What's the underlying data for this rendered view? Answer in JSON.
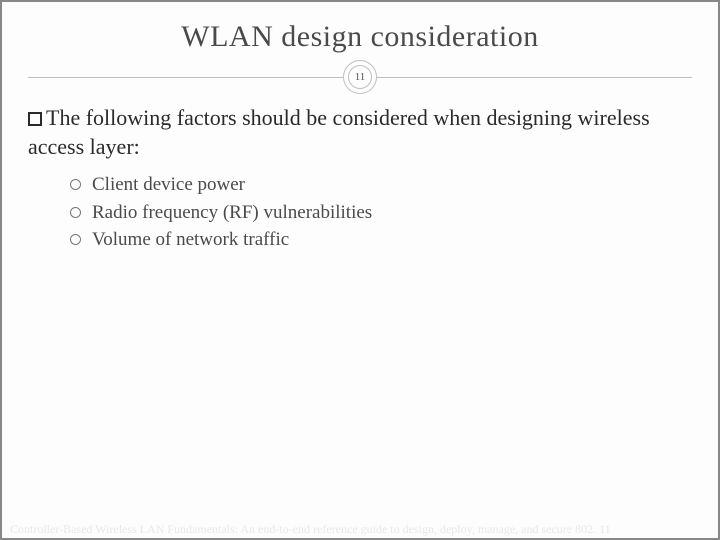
{
  "slide": {
    "title": "WLAN design consideration",
    "page_number": "11",
    "intro_text": "The following factors should be considered when designing wireless access layer:",
    "bullets": [
      "Client device power",
      "Radio frequency (RF) vulnerabilities",
      "Volume of network traffic"
    ],
    "footer": "Controller-Based Wireless LAN Fundamentals: An end-to-end reference guide to design, deploy, manage, and secure 802. 11",
    "colors": {
      "title_color": "#4a4a4a",
      "body_color": "#2a2a2a",
      "bullet_color": "#4a4a4a",
      "divider_color": "#bfbfbf",
      "footer_color": "#e8e8e8",
      "background": "#fdfdfd",
      "border": "#888888"
    },
    "typography": {
      "title_fontsize": 30,
      "intro_fontsize": 22,
      "bullet_fontsize": 19,
      "footer_fontsize": 12,
      "font_family": "Georgia, serif"
    }
  }
}
